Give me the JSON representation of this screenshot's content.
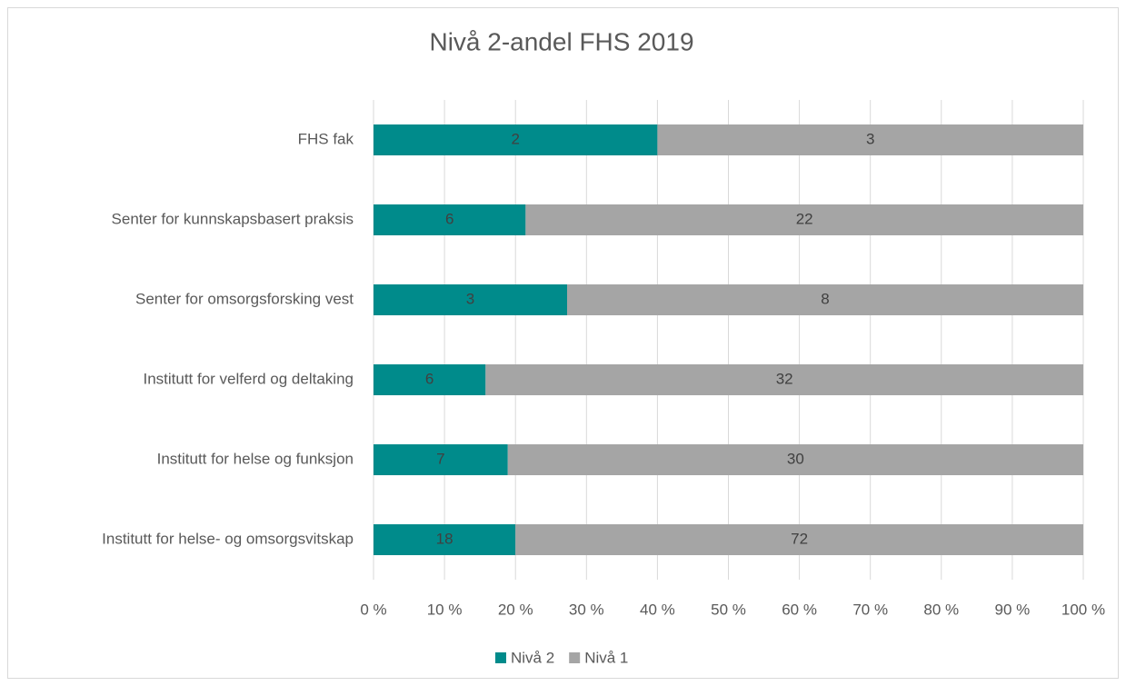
{
  "chart_data": {
    "type": "bar",
    "orientation": "horizontal",
    "stacked": "percent",
    "title": "Nivå 2-andel FHS 2019",
    "categories": [
      "FHS fak",
      "Senter for kunnskapsbasert praksis",
      "Senter for omsorgsforsking vest",
      "Institutt for velferd og deltaking",
      "Institutt for helse og funksjon",
      "Institutt for helse- og omsorgsvitskap"
    ],
    "series": [
      {
        "name": "Nivå 2",
        "color": "#008b8b",
        "values": [
          2,
          6,
          3,
          6,
          7,
          18
        ]
      },
      {
        "name": "Nivå 1",
        "color": "#a5a5a5",
        "values": [
          3,
          22,
          8,
          32,
          30,
          72
        ]
      }
    ],
    "xlim": [
      0,
      100
    ],
    "xticks": [
      {
        "value": 0,
        "label": "0 %"
      },
      {
        "value": 10,
        "label": "10 %"
      },
      {
        "value": 20,
        "label": "20 %"
      },
      {
        "value": 30,
        "label": "30 %"
      },
      {
        "value": 40,
        "label": "40 %"
      },
      {
        "value": 50,
        "label": "50 %"
      },
      {
        "value": 60,
        "label": "60 %"
      },
      {
        "value": 70,
        "label": "70 %"
      },
      {
        "value": 80,
        "label": "80 %"
      },
      {
        "value": 90,
        "label": "90 %"
      },
      {
        "value": 100,
        "label": "100 %"
      }
    ],
    "grid": true,
    "legend": "bottom"
  }
}
